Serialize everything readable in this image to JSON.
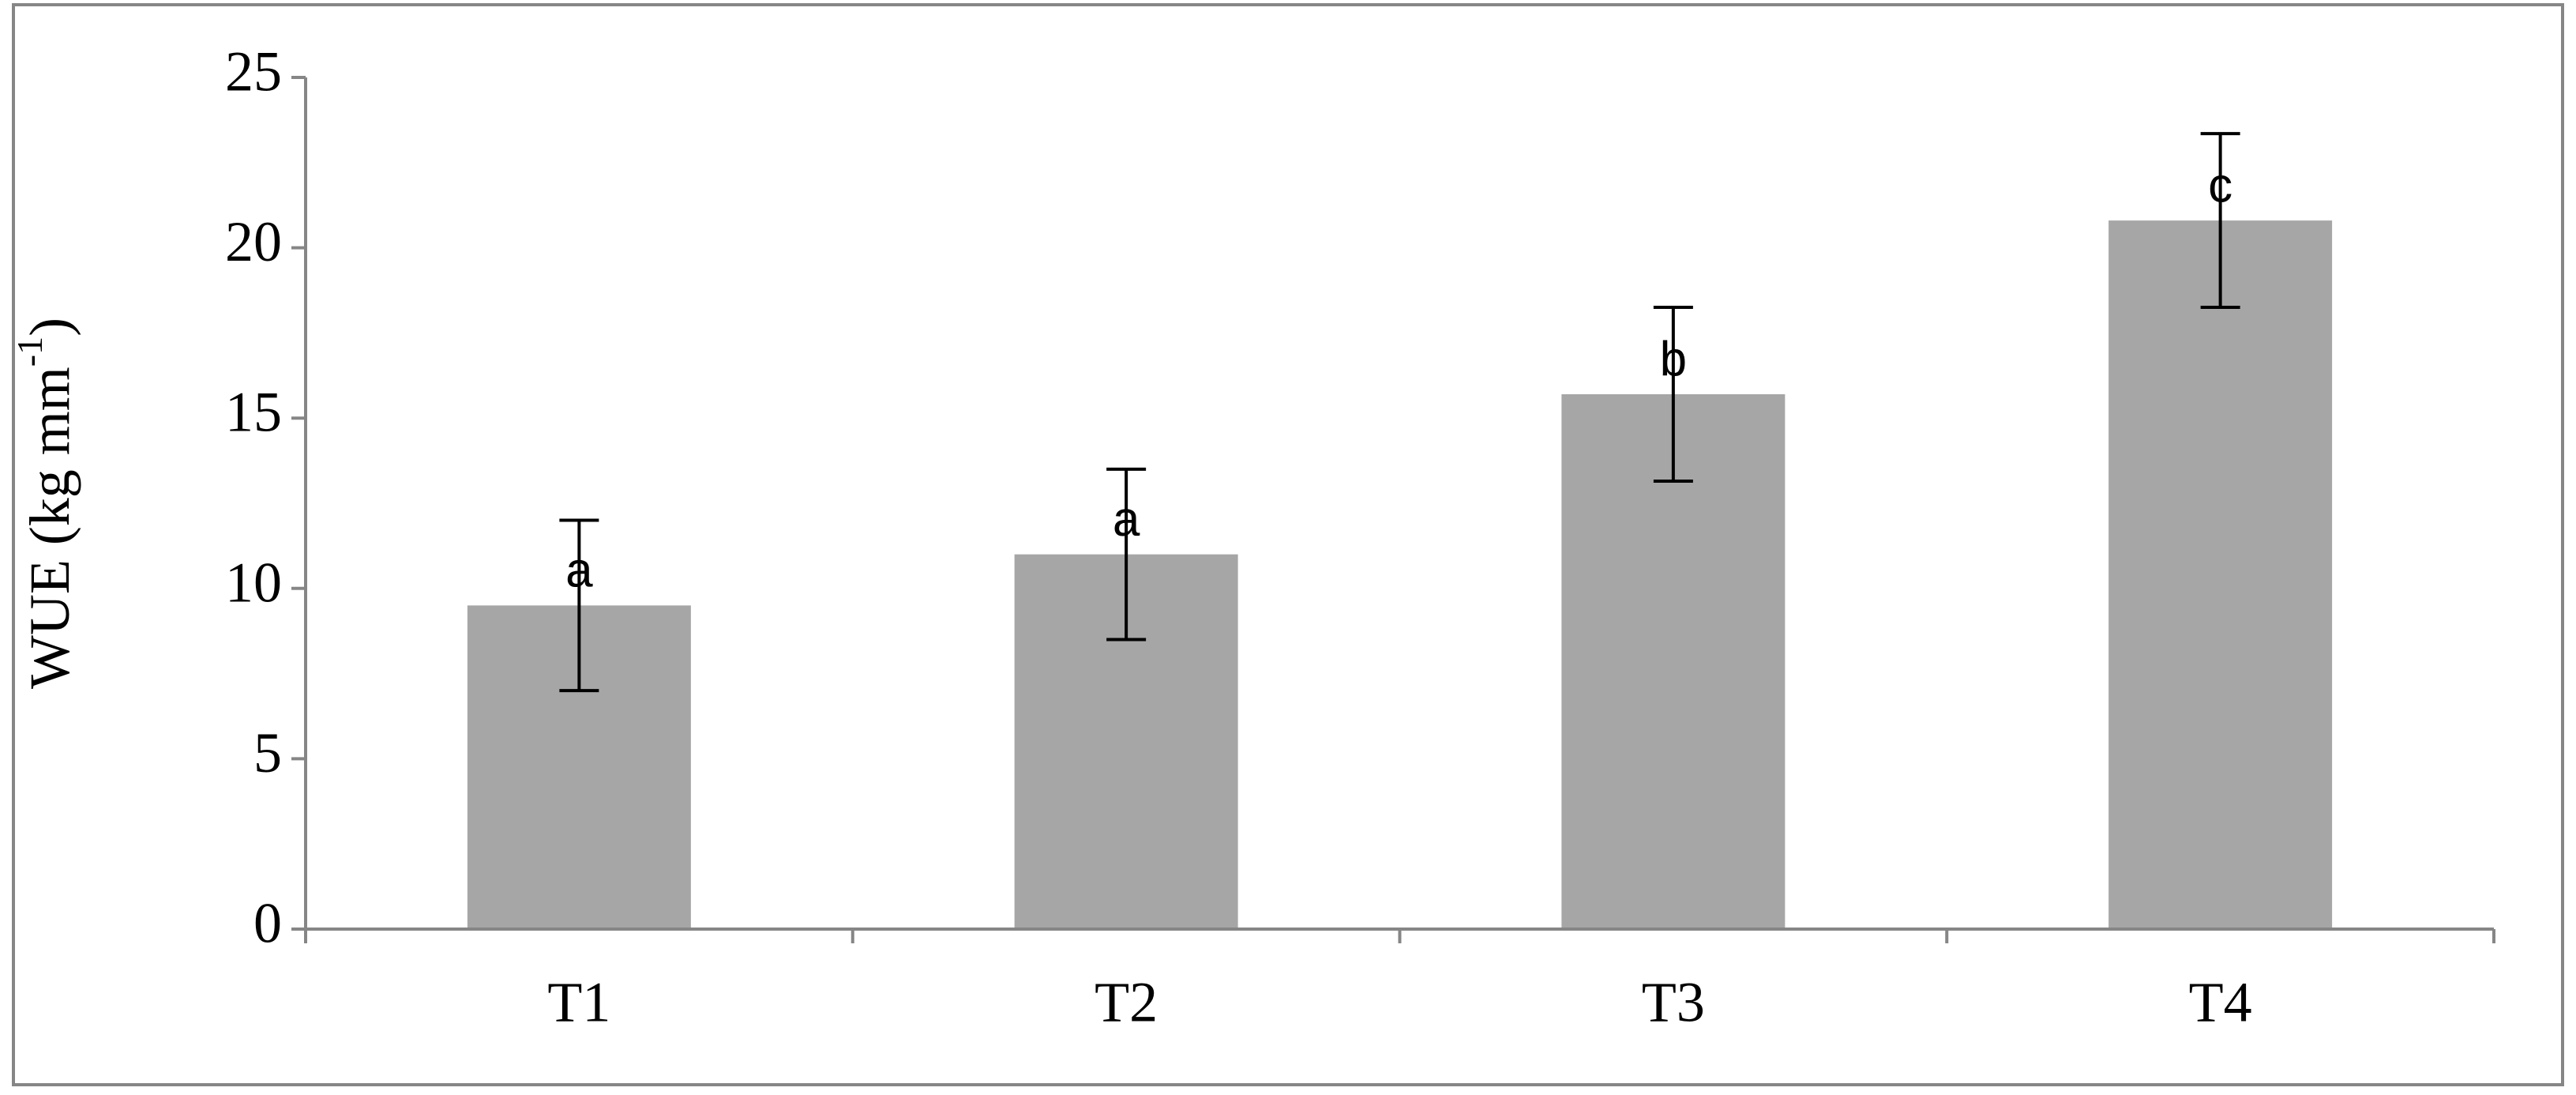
{
  "chart_data": {
    "type": "bar",
    "ylabel_parts": [
      "WUE (kg mm",
      "-1",
      ")"
    ],
    "categories": [
      "T1",
      "T2",
      "T3",
      "T4"
    ],
    "values": [
      9.5,
      11.0,
      15.7,
      20.8
    ],
    "errors": [
      2.5,
      2.5,
      2.55,
      2.55
    ],
    "value_annotations": [
      "a",
      "a",
      "b",
      "c"
    ],
    "color": "#a6a6a6",
    "ylim": [
      0,
      25
    ],
    "yticks": [
      0,
      5,
      10,
      15,
      20,
      25
    ]
  }
}
